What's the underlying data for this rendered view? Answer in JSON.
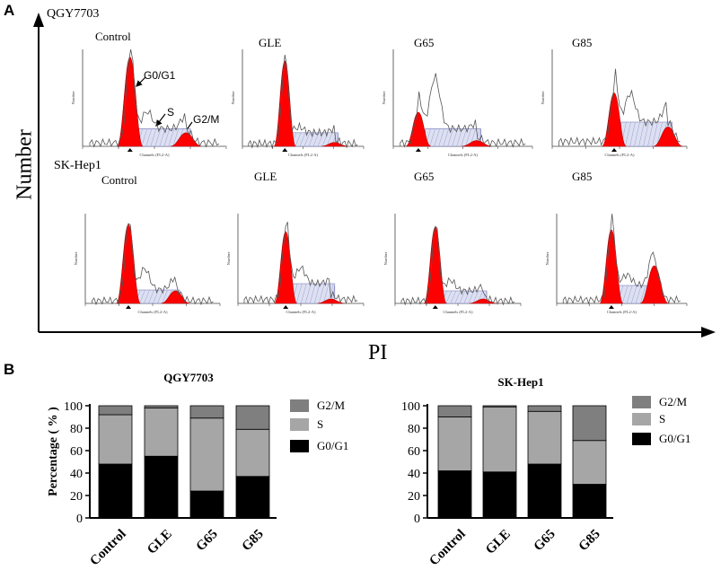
{
  "panel_a": {
    "letter": "A",
    "row1_label": "QGY7703",
    "row2_label": "SK-Hep1",
    "y_axis_title": "Number",
    "x_axis_title": "PI",
    "row1_titles": [
      "Control",
      "GLE",
      "G65",
      "G85"
    ],
    "row2_titles": [
      "Control",
      "GLE",
      "G65",
      "G85"
    ],
    "annotations": {
      "g0g1": "G0/G1",
      "s": "S",
      "g2m": "G2/M"
    },
    "mini_x_label": "Channels (FL2-A)",
    "mini_y_label": "Number"
  },
  "panel_b": {
    "letter": "B",
    "legend": {
      "g2m": "G2/M",
      "s": "S",
      "g0g1": "G0/G1"
    },
    "colors": {
      "g0g1": "#000000",
      "s": "#a6a6a6",
      "g2m": "#7f7f7f"
    }
  },
  "chart_data": [
    {
      "type": "bar",
      "stacked": true,
      "title": "QGY7703",
      "ylabel": "Percentage ( % )",
      "xlabel": "",
      "categories": [
        "Control",
        "GLE",
        "G65",
        "G85"
      ],
      "ylim": [
        0,
        100
      ],
      "yticks": [
        0,
        20,
        40,
        60,
        80,
        100
      ],
      "series": [
        {
          "name": "G0/G1",
          "values": [
            48,
            55,
            24,
            37
          ]
        },
        {
          "name": "S",
          "values": [
            44,
            43,
            65,
            42
          ]
        },
        {
          "name": "G2/M",
          "values": [
            8,
            2,
            11,
            21
          ]
        }
      ]
    },
    {
      "type": "bar",
      "stacked": true,
      "title": "SK-Hep1",
      "ylabel": "Percentage ( % )",
      "xlabel": "",
      "categories": [
        "Control",
        "GLE",
        "G65",
        "G85"
      ],
      "ylim": [
        0,
        100
      ],
      "yticks": [
        0,
        20,
        40,
        60,
        80,
        100
      ],
      "series": [
        {
          "name": "G0/G1",
          "values": [
            42,
            41,
            48,
            30
          ]
        },
        {
          "name": "S",
          "values": [
            48,
            58,
            47,
            39
          ]
        },
        {
          "name": "G2/M",
          "values": [
            10,
            1,
            5,
            31
          ]
        }
      ]
    }
  ]
}
